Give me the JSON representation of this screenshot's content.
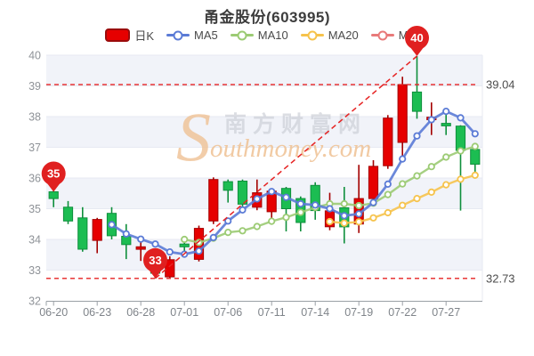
{
  "page": {
    "title": "甬金股份(603995)"
  },
  "legend": {
    "items": [
      {
        "label": "日K",
        "type": "kline",
        "color": "#e60000",
        "border": "#9a0b0b"
      },
      {
        "label": "MA5",
        "type": "line",
        "color": "#5b7bd6"
      },
      {
        "label": "MA10",
        "type": "line",
        "color": "#9ccb74"
      },
      {
        "label": "MA20",
        "type": "line",
        "color": "#f6c34c"
      },
      {
        "label": "MA30",
        "type": "line",
        "color": "#e87a7a"
      }
    ]
  },
  "watermark": {
    "initial": "S",
    "brand_cn": "南方财富网",
    "brand_en": "outhmoney.com"
  },
  "chart_data": {
    "type": "candlestick",
    "title": "甬金股份(603995)",
    "ylim": [
      32,
      40
    ],
    "y_ticks": [
      "40",
      "39",
      "38",
      "37",
      "36",
      "35",
      "34",
      "33",
      "32"
    ],
    "grid": "on",
    "legend_position": "top",
    "dates": [
      "06-20",
      "06-21",
      "06-22",
      "06-23",
      "06-24",
      "06-27",
      "06-28",
      "06-29",
      "06-30",
      "07-01",
      "07-04",
      "07-05",
      "07-06",
      "07-07",
      "07-08",
      "07-11",
      "07-12",
      "07-13",
      "07-14",
      "07-15",
      "07-18",
      "07-19",
      "07-20",
      "07-21",
      "07-22",
      "07-25",
      "07-26",
      "07-27",
      "07-28",
      "07-29"
    ],
    "x_tick_labels": [
      {
        "i": 0,
        "t": "06-20"
      },
      {
        "i": 3,
        "t": "06-23"
      },
      {
        "i": 6,
        "t": "06-28"
      },
      {
        "i": 9,
        "t": "07-01"
      },
      {
        "i": 12,
        "t": "07-06"
      },
      {
        "i": 15,
        "t": "07-11"
      },
      {
        "i": 18,
        "t": "07-14"
      },
      {
        "i": 21,
        "t": "07-19"
      },
      {
        "i": 24,
        "t": "07-22"
      },
      {
        "i": 27,
        "t": "07-27"
      }
    ],
    "candles": [
      {
        "d": "06-20",
        "o": 35.55,
        "c": 35.33,
        "l": 35.05,
        "h": 35.6
      },
      {
        "d": "06-21",
        "o": 35.05,
        "c": 34.6,
        "l": 34.5,
        "h": 35.25
      },
      {
        "d": "06-22",
        "o": 34.7,
        "c": 33.68,
        "l": 33.6,
        "h": 35.05
      },
      {
        "d": "06-23",
        "o": 33.97,
        "c": 34.65,
        "l": 33.55,
        "h": 34.7
      },
      {
        "d": "06-24",
        "o": 34.85,
        "c": 34.12,
        "l": 34.0,
        "h": 35.05
      },
      {
        "d": "06-27",
        "o": 34.1,
        "c": 33.83,
        "l": 33.36,
        "h": 34.5
      },
      {
        "d": "06-28",
        "o": 33.68,
        "c": 33.76,
        "l": 33.3,
        "h": 34.0
      },
      {
        "d": "06-29",
        "o": 33.6,
        "c": 32.9,
        "l": 32.73,
        "h": 33.7
      },
      {
        "d": "06-30",
        "o": 32.78,
        "c": 33.34,
        "l": 32.75,
        "h": 33.45
      },
      {
        "d": "07-01",
        "o": 33.85,
        "c": 33.76,
        "l": 33.6,
        "h": 33.98
      },
      {
        "d": "07-04",
        "o": 33.35,
        "c": 34.36,
        "l": 33.28,
        "h": 34.45
      },
      {
        "d": "07-05",
        "o": 34.6,
        "c": 35.95,
        "l": 34.5,
        "h": 36.02
      },
      {
        "d": "07-06",
        "o": 35.88,
        "c": 35.6,
        "l": 35.2,
        "h": 35.95
      },
      {
        "d": "07-07",
        "o": 35.9,
        "c": 35.15,
        "l": 35.05,
        "h": 35.95
      },
      {
        "d": "07-08",
        "o": 35.05,
        "c": 35.52,
        "l": 34.95,
        "h": 35.95
      },
      {
        "d": "07-11",
        "o": 34.9,
        "c": 35.57,
        "l": 34.7,
        "h": 35.62
      },
      {
        "d": "07-12",
        "o": 35.66,
        "c": 35.0,
        "l": 34.26,
        "h": 35.71
      },
      {
        "d": "07-13",
        "o": 35.33,
        "c": 34.55,
        "l": 34.26,
        "h": 35.4
      },
      {
        "d": "07-14",
        "o": 35.76,
        "c": 34.94,
        "l": 34.64,
        "h": 35.86
      },
      {
        "d": "07-15",
        "o": 34.41,
        "c": 34.93,
        "l": 34.3,
        "h": 35.52
      },
      {
        "d": "07-18",
        "o": 35.03,
        "c": 34.41,
        "l": 33.87,
        "h": 35.71
      },
      {
        "d": "07-19",
        "o": 34.5,
        "c": 35.33,
        "l": 34.21,
        "h": 36.43
      },
      {
        "d": "07-20",
        "o": 35.33,
        "c": 36.38,
        "l": 35.1,
        "h": 36.58
      },
      {
        "d": "07-21",
        "o": 36.4,
        "c": 37.95,
        "l": 36.3,
        "h": 38.05
      },
      {
        "d": "07-22",
        "o": 37.16,
        "c": 39.04,
        "l": 36.72,
        "h": 39.3
      },
      {
        "d": "07-25",
        "o": 38.8,
        "c": 38.17,
        "l": 37.93,
        "h": 39.97
      },
      {
        "d": "07-26",
        "o": 37.9,
        "c": 37.98,
        "l": 37.4,
        "h": 38.46
      },
      {
        "d": "07-27",
        "o": 37.78,
        "c": 37.7,
        "l": 37.4,
        "h": 38.27
      },
      {
        "d": "07-28",
        "o": 37.69,
        "c": 36.9,
        "l": 34.94,
        "h": 37.72
      },
      {
        "d": "07-29",
        "o": 36.93,
        "c": 36.45,
        "l": 36.19,
        "h": 37.13
      }
    ],
    "series": [
      {
        "name": "MA5",
        "color": "#5b7bd6",
        "width": 2.8,
        "values": [
          null,
          null,
          null,
          null,
          34.48,
          34.18,
          34.01,
          33.85,
          33.59,
          33.52,
          33.62,
          34.06,
          34.6,
          34.96,
          35.32,
          35.56,
          35.37,
          35.16,
          35.12,
          35.0,
          34.77,
          34.83,
          35.2,
          35.8,
          36.62,
          37.37,
          37.9,
          38.17,
          37.96,
          37.44
        ]
      },
      {
        "name": "MA10",
        "color": "#9ccb74",
        "width": 2.4,
        "values": [
          null,
          null,
          null,
          null,
          null,
          null,
          null,
          null,
          null,
          34.0,
          33.9,
          34.04,
          34.23,
          34.28,
          34.42,
          34.59,
          34.72,
          34.88,
          35.04,
          35.16,
          35.16,
          35.1,
          35.18,
          35.46,
          35.81,
          36.07,
          36.37,
          36.68,
          36.88,
          37.03
        ]
      },
      {
        "name": "MA20",
        "color": "#f6c34c",
        "width": 2.4,
        "values": [
          null,
          null,
          null,
          null,
          null,
          null,
          null,
          null,
          null,
          null,
          null,
          null,
          null,
          null,
          null,
          null,
          null,
          null,
          null,
          34.58,
          34.53,
          34.57,
          34.7,
          34.87,
          35.11,
          35.33,
          35.54,
          35.78,
          35.96,
          36.09
        ]
      },
      {
        "name": "MA30",
        "color": "#e87a7a",
        "width": 2.4,
        "values": [
          null,
          null,
          null,
          null,
          null,
          null,
          null,
          null,
          null,
          null,
          null,
          null,
          null,
          null,
          null,
          null,
          null,
          null,
          null,
          null,
          null,
          null,
          null,
          null,
          null,
          null,
          null,
          null,
          null,
          null
        ]
      }
    ],
    "marklines": [
      {
        "value": 39.04,
        "label": "39.04"
      },
      {
        "value": 32.73,
        "label": "32.73"
      }
    ],
    "markpoints": [
      {
        "label": "35",
        "index": 0,
        "value": 35.55
      },
      {
        "label": "33",
        "index": 7,
        "value": 32.73
      },
      {
        "label": "40",
        "index": 25,
        "value": 39.97
      }
    ],
    "trendline": {
      "from": {
        "index": 7,
        "value": 32.73
      },
      "to": {
        "index": 25,
        "value": 39.97
      }
    },
    "colors": {
      "up": "#e60000",
      "up_border": "#a40000",
      "down": "#1cbd52",
      "down_border": "#0f8f3c",
      "band": "#f1f3f9",
      "gridline": "#e7eaf2",
      "axis": "#9aa0a6",
      "axis_label": "#8f9398",
      "x_label": "#7f848a",
      "dashed": "#e62222",
      "balloon": "#e02020",
      "balloon_text": "#ffffff",
      "markline_label": "#4d4d4d",
      "watermark_cn": "#c9ccd4",
      "watermark_en": "#efc193"
    }
  }
}
